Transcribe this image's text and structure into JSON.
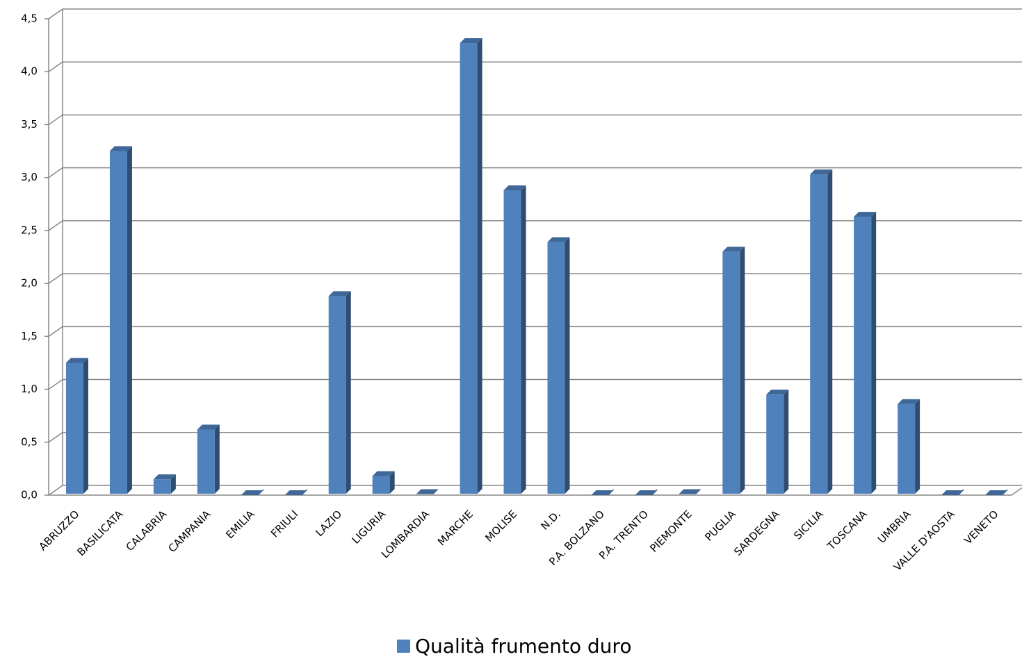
{
  "chart_data": {
    "type": "bar3d",
    "categories": [
      "ABRUZZO",
      "BASILICATA",
      "CALABRIA",
      "CAMPANIA",
      "EMILIA",
      "FRIULI",
      "LAZIO",
      "LIGURIA",
      "LOMBARDIA",
      "MARCHE",
      "MOLISE",
      "N.D.",
      "P.A. BOLZANO",
      "P.A. TRENTO",
      "PIEMONTE",
      "PUGLIA",
      "SARDEGNA",
      "SICILIA",
      "TOSCANA",
      "UMBRIA",
      "VALLE D'AOSTA",
      "VENETO"
    ],
    "series": [
      {
        "name": "Qualità frumento duro",
        "color": "#4f81bd",
        "values": [
          1.25,
          3.25,
          0.15,
          0.62,
          0,
          0,
          1.88,
          0.18,
          0.01,
          4.27,
          2.88,
          2.39,
          0,
          0,
          0.01,
          2.3,
          0.95,
          3.03,
          2.63,
          0.86,
          0,
          0
        ]
      }
    ],
    "ylim": [
      0,
      4.5
    ],
    "yticks": [
      {
        "value": 0,
        "label": "0,0"
      },
      {
        "value": 0.5,
        "label": "0,5"
      },
      {
        "value": 1,
        "label": "1,0"
      },
      {
        "value": 1.5,
        "label": "1,5"
      },
      {
        "value": 2,
        "label": "2,0"
      },
      {
        "value": 2.5,
        "label": "2,5"
      },
      {
        "value": 3,
        "label": "3,0"
      },
      {
        "value": 3.5,
        "label": "3,5"
      },
      {
        "value": 4,
        "label": "4,0"
      },
      {
        "value": 4.5,
        "label": "4,5"
      }
    ],
    "grid": true,
    "legend": "bottom"
  }
}
